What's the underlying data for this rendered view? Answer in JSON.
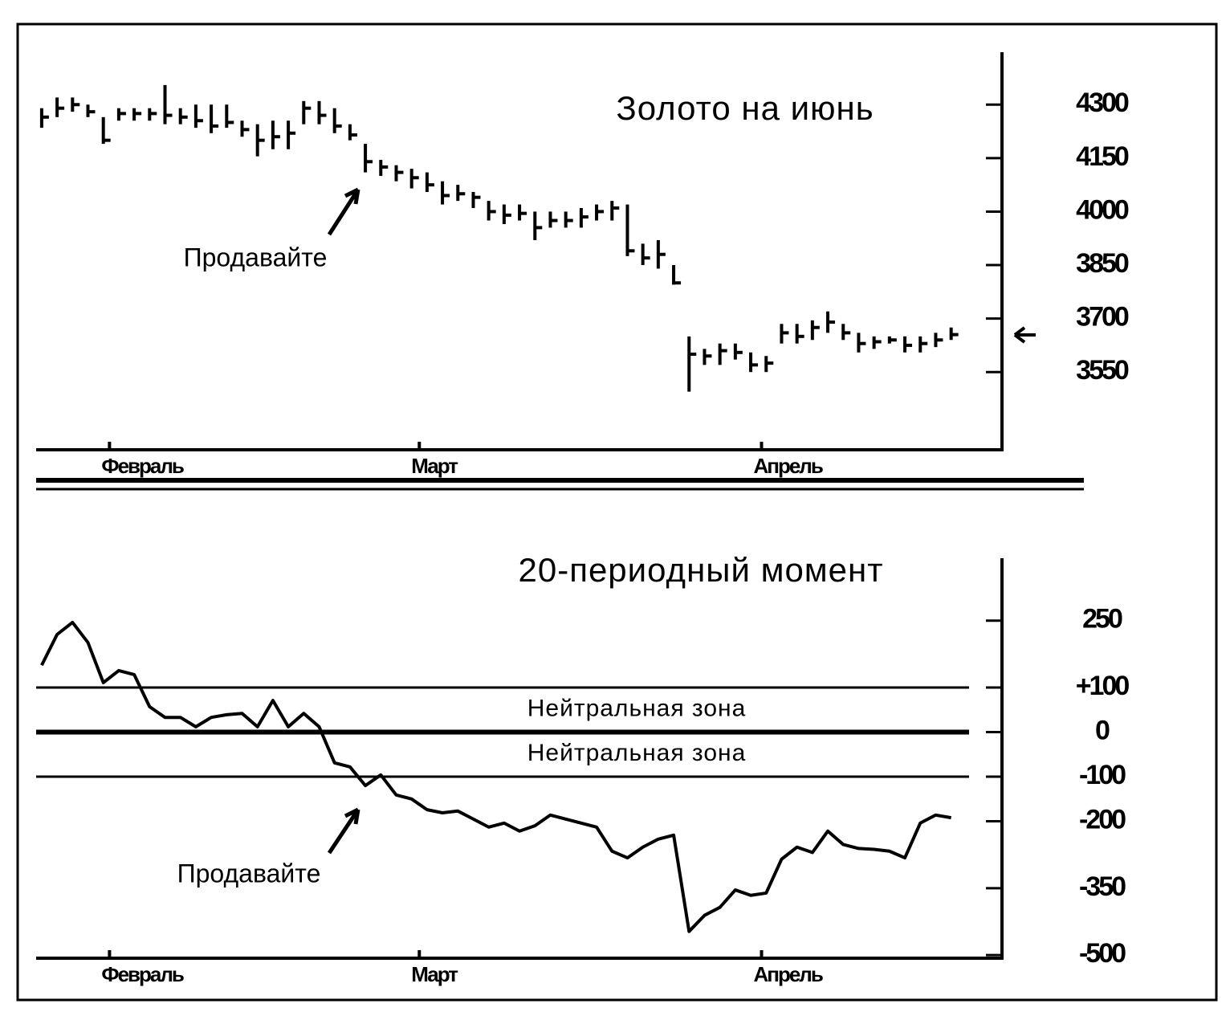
{
  "chart_data": [
    {
      "type": "ohlc",
      "title": "Золото на июнь",
      "annotation": "Продавайте",
      "color": "#000000",
      "x": [
        0,
        1,
        2,
        3,
        4,
        5,
        6,
        7,
        8,
        9,
        10,
        11,
        12,
        13,
        14,
        15,
        16,
        17,
        18,
        19,
        20,
        21,
        22,
        23,
        24,
        25,
        26,
        27,
        28,
        29,
        30,
        31,
        32,
        33,
        34,
        35,
        36,
        37,
        38,
        39,
        40,
        41,
        42,
        43,
        44,
        45,
        46,
        47,
        48,
        49,
        50,
        51,
        52,
        53,
        54,
        55,
        56,
        57,
        58,
        59
      ],
      "high": [
        4290,
        4320,
        4320,
        4300,
        4265,
        4290,
        4290,
        4290,
        4355,
        4290,
        4300,
        4300,
        4300,
        4255,
        4245,
        4255,
        4255,
        4310,
        4310,
        4290,
        4245,
        4190,
        4145,
        4130,
        4120,
        4110,
        4085,
        4075,
        4055,
        4030,
        4020,
        4020,
        4000,
        4000,
        4000,
        4010,
        4020,
        4030,
        4020,
        3910,
        3920,
        3850,
        3650,
        3615,
        3630,
        3630,
        3605,
        3595,
        3685,
        3685,
        3695,
        3720,
        3685,
        3660,
        3650,
        3650,
        3650,
        3650,
        3660,
        3675
      ],
      "low": [
        4235,
        4265,
        4280,
        4265,
        4190,
        4255,
        4255,
        4255,
        4245,
        4245,
        4235,
        4220,
        4235,
        4210,
        4155,
        4175,
        4175,
        4245,
        4245,
        4220,
        4200,
        4110,
        4100,
        4085,
        4065,
        4055,
        4020,
        4030,
        4010,
        3975,
        3965,
        3975,
        3920,
        3955,
        3955,
        3955,
        3975,
        3975,
        3875,
        3850,
        3840,
        3795,
        3495,
        3570,
        3570,
        3585,
        3550,
        3550,
        3630,
        3630,
        3640,
        3660,
        3640,
        3605,
        3615,
        3630,
        3605,
        3605,
        3620,
        3640
      ],
      "close": [
        4265,
        4290,
        4300,
        4280,
        4200,
        4275,
        4275,
        4275,
        4270,
        4265,
        4255,
        4240,
        4250,
        4230,
        4200,
        4210,
        4220,
        4290,
        4270,
        4240,
        4215,
        4140,
        4125,
        4110,
        4095,
        4075,
        4045,
        4050,
        4040,
        4000,
        3990,
        3995,
        3955,
        3975,
        3975,
        3985,
        4000,
        4010,
        3890,
        3870,
        3880,
        3800,
        3600,
        3595,
        3610,
        3605,
        3570,
        3575,
        3660,
        3650,
        3675,
        3690,
        3660,
        3630,
        3635,
        3640,
        3625,
        3630,
        3640,
        3655
      ],
      "xlim": [
        -0.36,
        62.3
      ],
      "xticks": [
        {
          "value": 4.4,
          "label": "Февраль"
        },
        {
          "value": 24.5,
          "label": "Март"
        },
        {
          "value": 46.7,
          "label": "Апрель"
        }
      ],
      "ylim": [
        3332,
        4447
      ],
      "yticks": [
        3550,
        3700,
        3850,
        4000,
        4150,
        4300
      ]
    },
    {
      "type": "line",
      "title": "20-периодный момент",
      "annotation": "Продавайте",
      "color": "#000000",
      "x": [
        0,
        1,
        2,
        3,
        4,
        5,
        6,
        7,
        8,
        9,
        10,
        11,
        12,
        13,
        14,
        15,
        16,
        17,
        18,
        19,
        20,
        21,
        22,
        23,
        24,
        25,
        26,
        27,
        28,
        29,
        30,
        31,
        32,
        33,
        34,
        35,
        36,
        37,
        38,
        39,
        40,
        41,
        42,
        43,
        44,
        45,
        46,
        47,
        48,
        49,
        50,
        51,
        52,
        53,
        54,
        55,
        56,
        57,
        58,
        59
      ],
      "values": [
        150,
        219,
        246,
        201,
        111,
        138,
        129,
        57,
        33,
        33,
        12,
        33,
        39,
        42,
        12,
        71,
        12,
        42,
        12,
        -69,
        -78,
        -120,
        -96,
        -141,
        -150,
        -174,
        -181,
        -177,
        -195,
        -213,
        -204,
        -222,
        -210,
        -186,
        -195,
        -204,
        -213,
        -267,
        -282,
        -258,
        -240,
        -231,
        -447,
        -411,
        -393,
        -354,
        -366,
        -361,
        -285,
        -258,
        -270,
        -222,
        -252,
        -261,
        -263,
        -267,
        -282,
        -204,
        -186,
        -192
      ],
      "reference_lines": [
        100,
        0,
        -100
      ],
      "zone_labels": [
        "Нейтральная зона",
        "Нейтральная зона"
      ],
      "xlim": [
        -0.36,
        62.3
      ],
      "xticks": [
        {
          "value": 4.4,
          "label": "Февраль"
        },
        {
          "value": 24.5,
          "label": "Март"
        },
        {
          "value": 46.7,
          "label": "Апрель"
        }
      ],
      "ylim": [
        -507,
        390
      ],
      "yticks": [
        -500,
        -350,
        -200,
        -100,
        0,
        {
          "value": 100,
          "label": "+100"
        },
        250
      ]
    }
  ]
}
